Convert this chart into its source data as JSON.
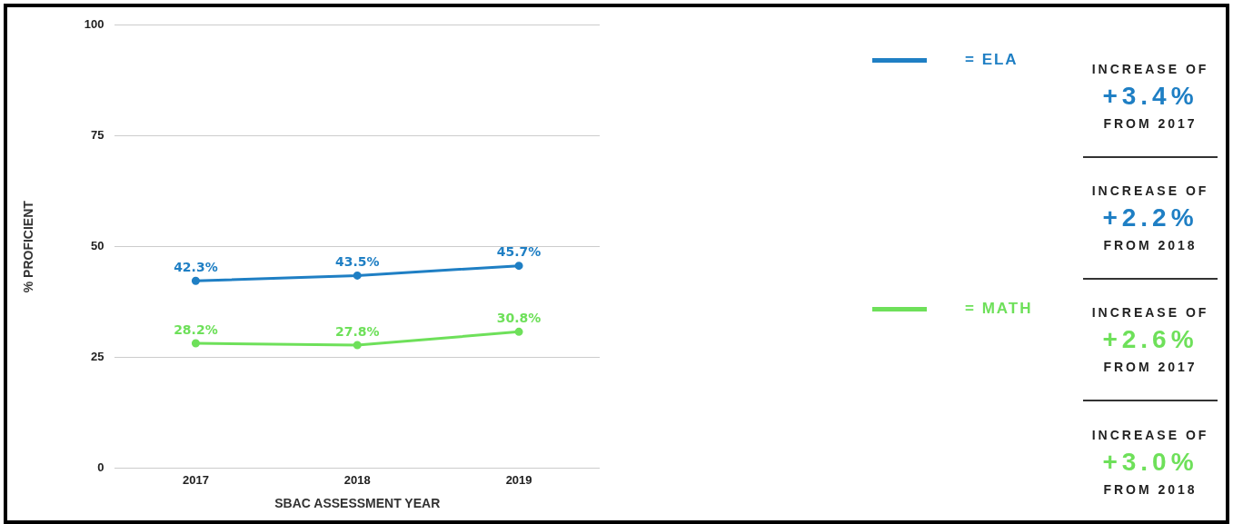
{
  "chart_data": {
    "type": "line",
    "xlabel": "SBAC ASSESSMENT YEAR",
    "ylabel": "% PROFICIENT",
    "categories": [
      "2017",
      "2018",
      "2019"
    ],
    "series": [
      {
        "name": "= ELA",
        "color": "#1f7fc4",
        "values": [
          42.3,
          43.5,
          45.7
        ],
        "value_labels": [
          "42.3%",
          "43.5%",
          "45.7%"
        ]
      },
      {
        "name": "= MATH",
        "color": "#6ee05a",
        "values": [
          28.2,
          27.8,
          30.8
        ],
        "value_labels": [
          "28.2%",
          "27.8%",
          "30.8%"
        ]
      }
    ],
    "ylim": [
      0,
      100
    ],
    "yticks": [
      0,
      25,
      50,
      75,
      100
    ],
    "grid": "y",
    "legend": "right",
    "marker": "circle",
    "line_style": "solid",
    "annotations": [
      "INCREASE OF",
      "+3.4%",
      "FROM 2017",
      "INCREASE OF",
      "+2.2%",
      "FROM 2018",
      "INCREASE OF",
      "+2.6%",
      "FROM 2017",
      "INCREASE OF",
      "+3.0%",
      "FROM 2018"
    ]
  }
}
